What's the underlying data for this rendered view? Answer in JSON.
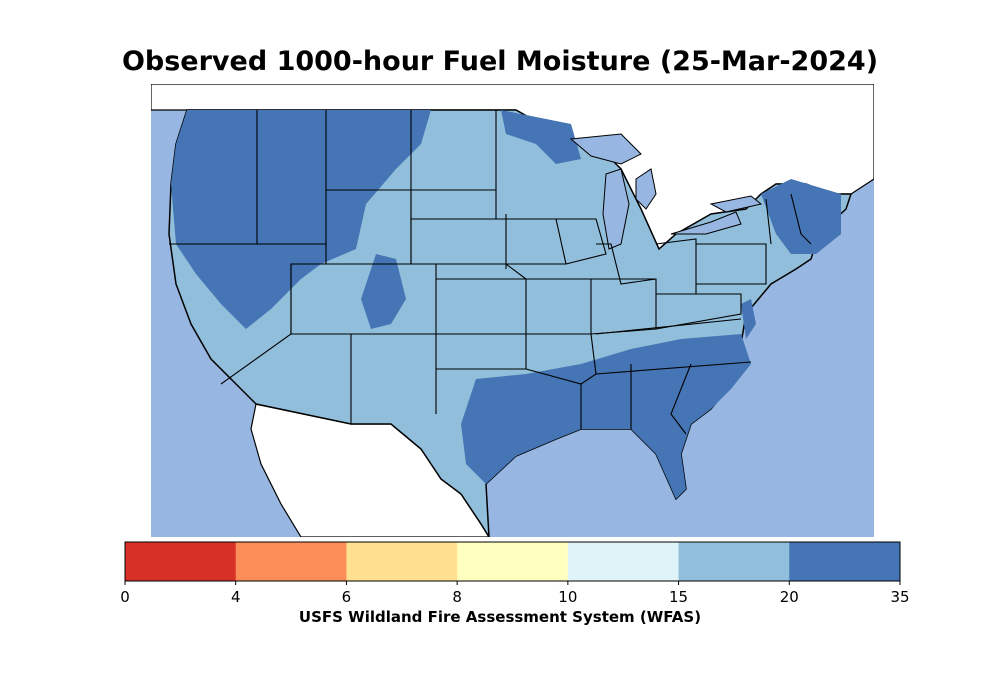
{
  "title": "Observed 1000-hour Fuel Moisture (25-Mar-2024)",
  "colorbar": {
    "title": "USFS Wildland Fire Assessment System (WFAS)",
    "ticks": [
      "0",
      "4",
      "6",
      "8",
      "10",
      "15",
      "20",
      "35"
    ],
    "bins": [
      {
        "from": 0,
        "to": 4,
        "color": "#d73027"
      },
      {
        "from": 4,
        "to": 6,
        "color": "#fc8d59"
      },
      {
        "from": 6,
        "to": 8,
        "color": "#fee090"
      },
      {
        "from": 8,
        "to": 10,
        "color": "#ffffbf"
      },
      {
        "from": 10,
        "to": 15,
        "color": "#e0f3f8"
      },
      {
        "from": 15,
        "to": 20,
        "color": "#91bfdb"
      },
      {
        "from": 20,
        "to": 35,
        "color": "#4575b4"
      }
    ]
  },
  "map": {
    "water_color": "#97b6e1",
    "land_outside_color": "#ffffff",
    "border_color": "#000000"
  }
}
